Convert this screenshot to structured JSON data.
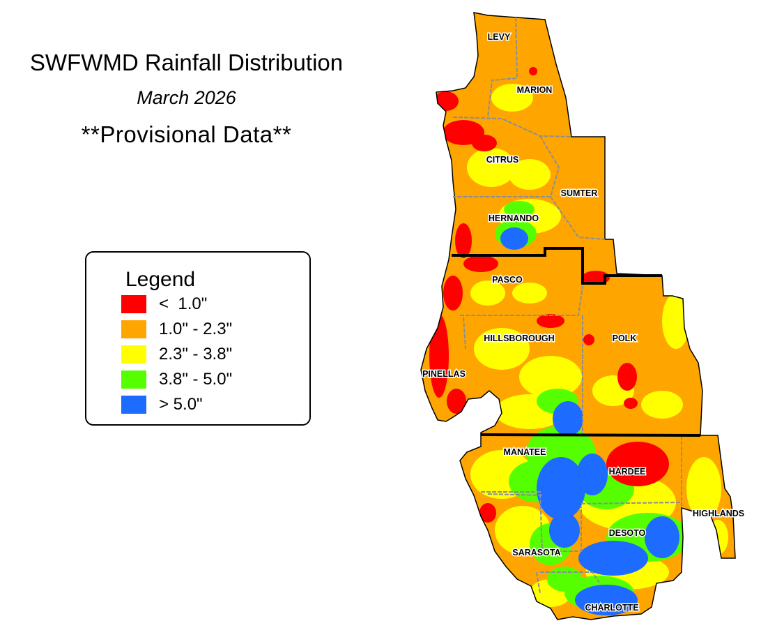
{
  "title": "SWFWMD Rainfall Distribution",
  "subtitle": "March 2026",
  "note": "**Provisional Data**",
  "legend": {
    "title": "Legend",
    "items": [
      {
        "label": "<  1.0\"",
        "color": "#ff0000"
      },
      {
        "label": "1.0\" - 2.3\"",
        "color": "#ffa500"
      },
      {
        "label": "2.3\" - 3.8\"",
        "color": "#ffff00"
      },
      {
        "label": "3.8\" - 5.0\"",
        "color": "#55ff00"
      },
      {
        "label": "> 5.0\"",
        "color": "#1e6bff"
      }
    ]
  },
  "counties": [
    {
      "id": "levy",
      "name": "LEVY"
    },
    {
      "id": "marion",
      "name": "MARION"
    },
    {
      "id": "citrus",
      "name": "CITRUS"
    },
    {
      "id": "sumter",
      "name": "SUMTER"
    },
    {
      "id": "hernando",
      "name": "HERNANDO"
    },
    {
      "id": "pasco",
      "name": "PASCO"
    },
    {
      "id": "hillsborough",
      "name": "HILLSBOROUGH"
    },
    {
      "id": "polk",
      "name": "POLK"
    },
    {
      "id": "pinellas",
      "name": "PINELLAS"
    },
    {
      "id": "manatee",
      "name": "MANATEE"
    },
    {
      "id": "hardee",
      "name": "HARDEE"
    },
    {
      "id": "highlands",
      "name": "HIGHLANDS"
    },
    {
      "id": "desoto",
      "name": "DESOTO"
    },
    {
      "id": "sarasota",
      "name": "SARASOTA"
    },
    {
      "id": "charlotte",
      "name": "CHARLOTTE"
    }
  ],
  "colors": {
    "county_border": "#8a8f96",
    "region_border": "#000000",
    "outline": "#000000"
  }
}
